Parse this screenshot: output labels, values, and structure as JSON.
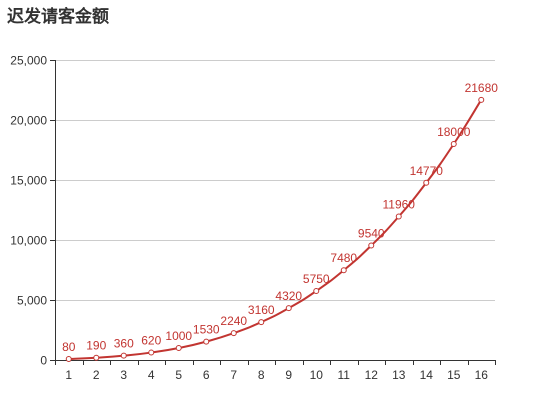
{
  "colors": {
    "series": "#c23531",
    "grid": "#cccccc",
    "axis": "#333333",
    "title": "#333333",
    "point_fill": "#ffffff"
  },
  "chart_data": {
    "type": "line",
    "title": "迟发请客金额",
    "xlabel": "",
    "ylabel": "",
    "categories": [
      "1",
      "2",
      "3",
      "4",
      "5",
      "6",
      "7",
      "8",
      "9",
      "10",
      "11",
      "12",
      "13",
      "14",
      "15",
      "16"
    ],
    "values": [
      80,
      190,
      360,
      620,
      1000,
      1530,
      2240,
      3160,
      4320,
      5750,
      7480,
      9540,
      11960,
      14770,
      18000,
      21680
    ],
    "ylim": [
      0,
      25000
    ],
    "y_ticks": [
      0,
      5000,
      10000,
      15000,
      20000,
      25000
    ],
    "y_tick_labels": [
      "0",
      "5,000",
      "10,000",
      "15,000",
      "20,000",
      "25,000"
    ],
    "grid": true,
    "smooth": true,
    "show_data_labels": true
  }
}
